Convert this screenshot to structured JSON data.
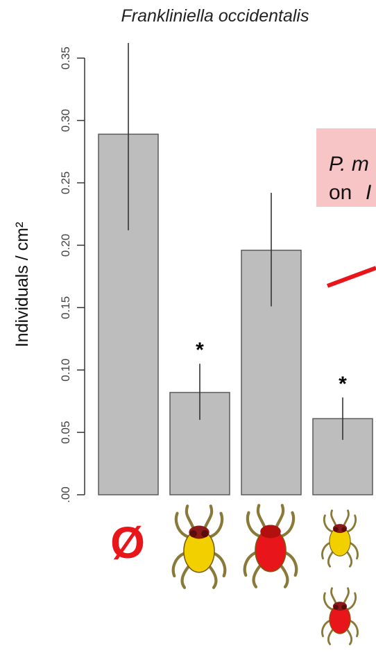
{
  "chart_data": {
    "type": "bar",
    "title": "Frankliniella occidentalis",
    "ylabel": "Individuals / cm²",
    "xlabel": "",
    "ylim": [
      0,
      0.37
    ],
    "yticks": [
      0.0,
      0.05,
      0.1,
      0.15,
      0.2,
      0.25,
      0.3,
      0.35
    ],
    "ytick_labels": [
      ".00",
      "0.05",
      "0.10",
      "0.15",
      "0.20",
      "0.25",
      "0.30",
      "0.35"
    ],
    "categories": [
      "Ø",
      "yellow mite",
      "red mite",
      "yellow + red mites"
    ],
    "values": [
      0.289,
      0.082,
      0.196,
      0.061
    ],
    "error_low": [
      0.212,
      0.06,
      0.151,
      0.044
    ],
    "error_high": [
      0.365,
      0.105,
      0.242,
      0.078
    ],
    "significance": [
      "",
      "*",
      "",
      "*"
    ],
    "bar_color": "#bdbdbd",
    "bar_edge_color": "#5a5a5a",
    "grid": false,
    "legend": "none"
  },
  "x_markers": {
    "empty_symbol": "Ø",
    "icons": [
      "yellow-mite-icon",
      "red-mite-icon",
      "yellow-and-red-mite-icon"
    ],
    "yellow_mite_color": "#f2d000",
    "red_mite_color": "#e8161b"
  },
  "callout": {
    "line1": "P. m",
    "line2": "on ",
    "background": "#f7c5c5",
    "arrow_color": "#e8161b"
  }
}
